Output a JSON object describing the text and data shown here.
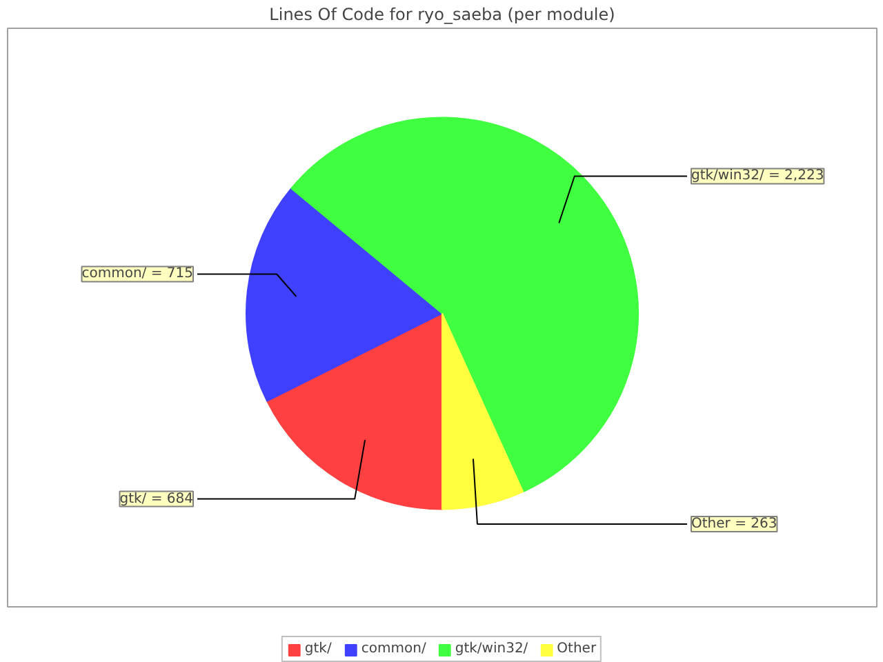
{
  "chart_data": {
    "type": "pie",
    "title": "Lines Of Code for ryo_saeba (per module)",
    "categories": [
      "gtk/",
      "common/",
      "gtk/win32/",
      "Other"
    ],
    "values": [
      684,
      715,
      2223,
      263
    ],
    "colors": [
      "#ff4040",
      "#4040ff",
      "#40ff40",
      "#ffff40"
    ],
    "value_labels": [
      "= 684",
      "= 715",
      "= 2,223",
      "= 263"
    ],
    "legend": "bottom"
  }
}
